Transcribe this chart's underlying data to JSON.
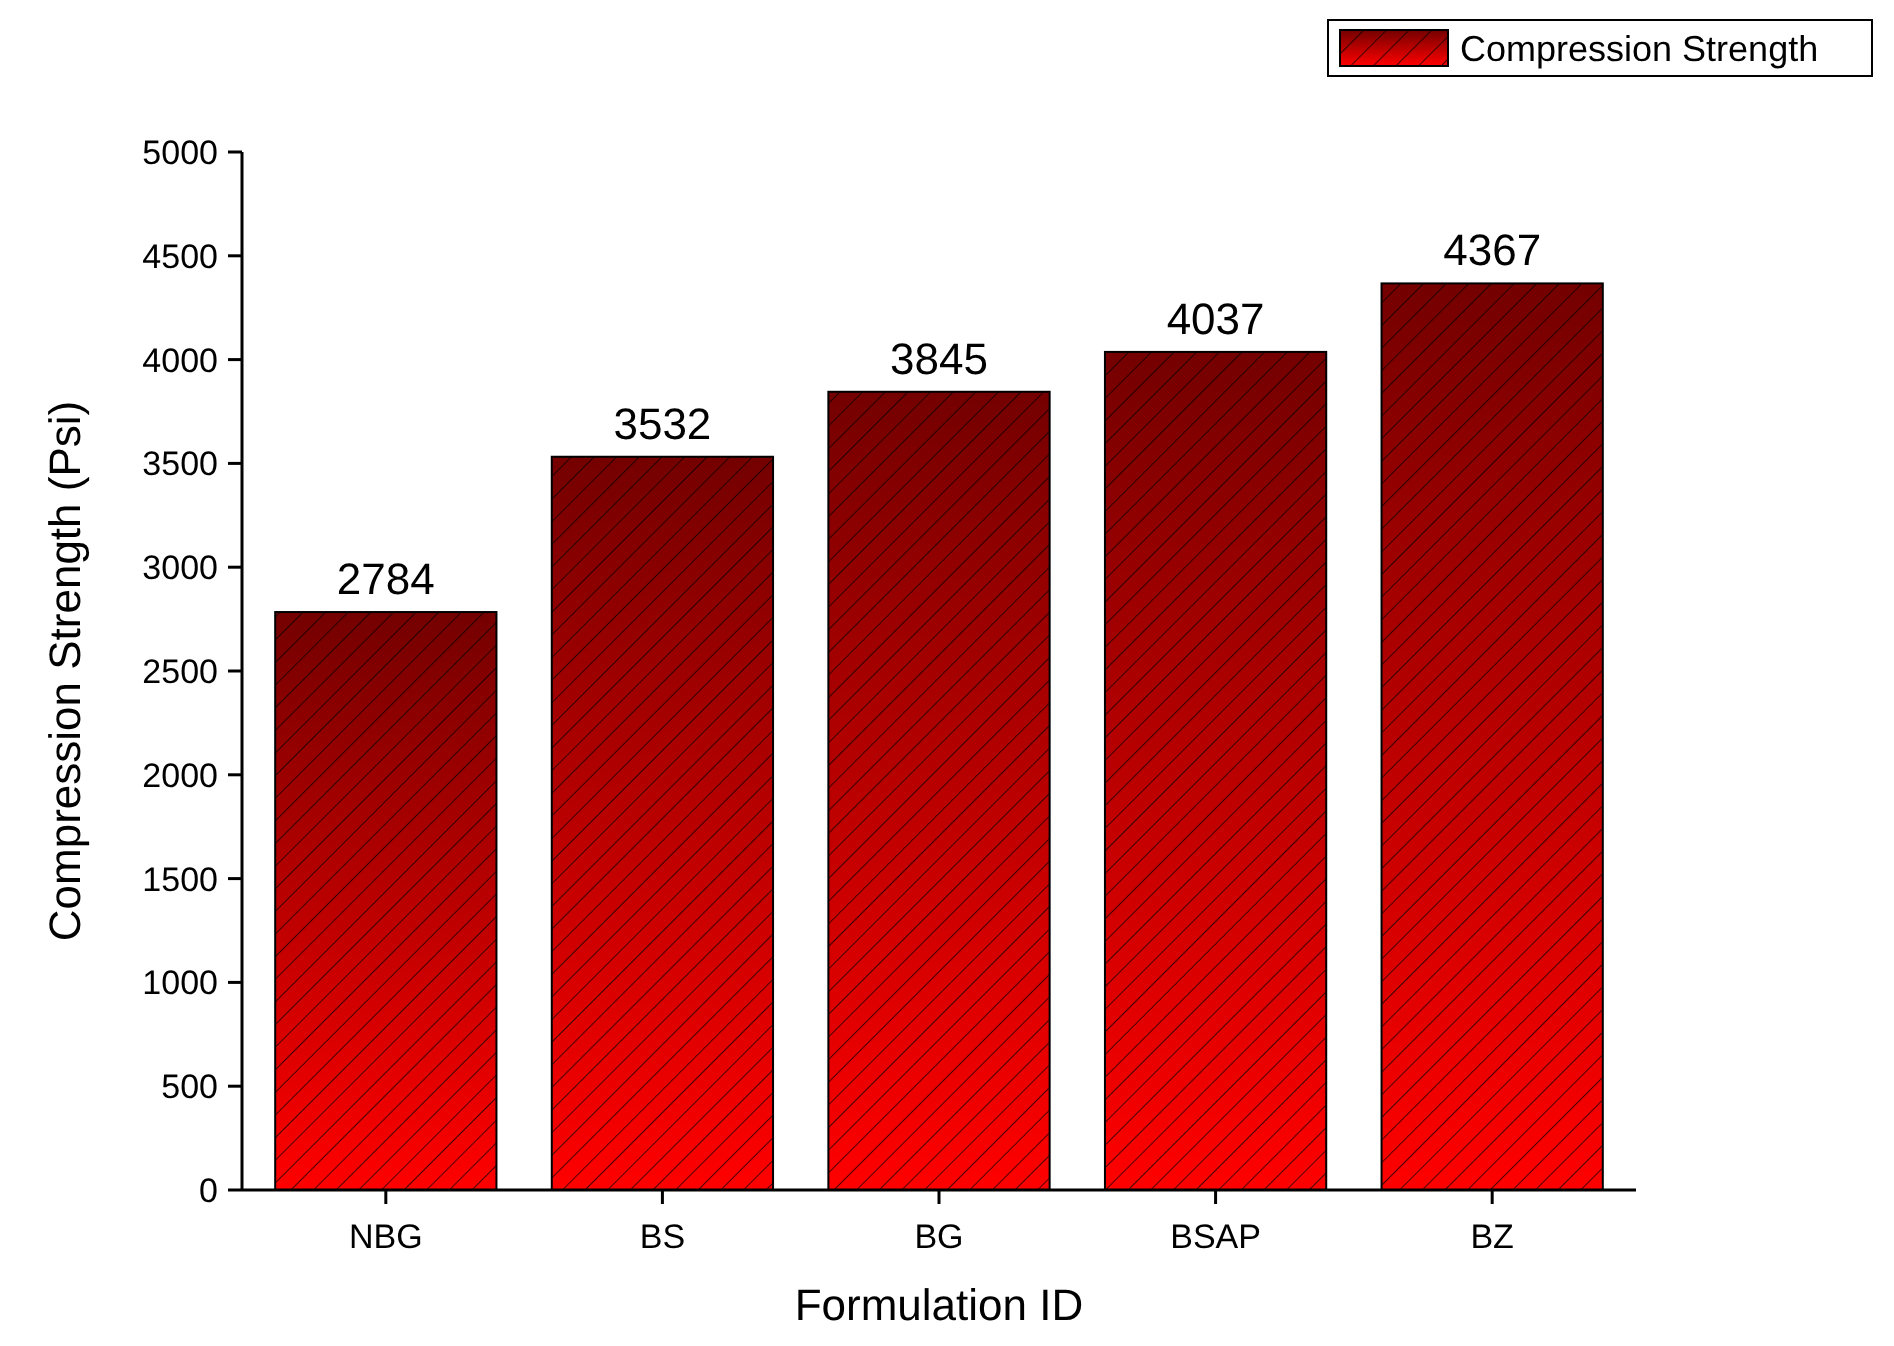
{
  "chart_data": {
    "type": "bar",
    "xlabel": "Formulation ID",
    "ylabel": "Compression Strength (Psi)",
    "categories": [
      "NBG",
      "BS",
      "BG",
      "BSAP",
      "BZ"
    ],
    "series": [
      {
        "name": "Compression Strength",
        "color": "#ff0000",
        "values": [
          2784,
          3532,
          3845,
          4037,
          4367
        ]
      }
    ],
    "ylim": [
      0,
      5000
    ],
    "yticks": [
      0,
      500,
      1000,
      1500,
      2000,
      2500,
      3000,
      3500,
      4000,
      4500,
      5000
    ],
    "data_labels": true,
    "grid": false,
    "legend": "top right"
  }
}
